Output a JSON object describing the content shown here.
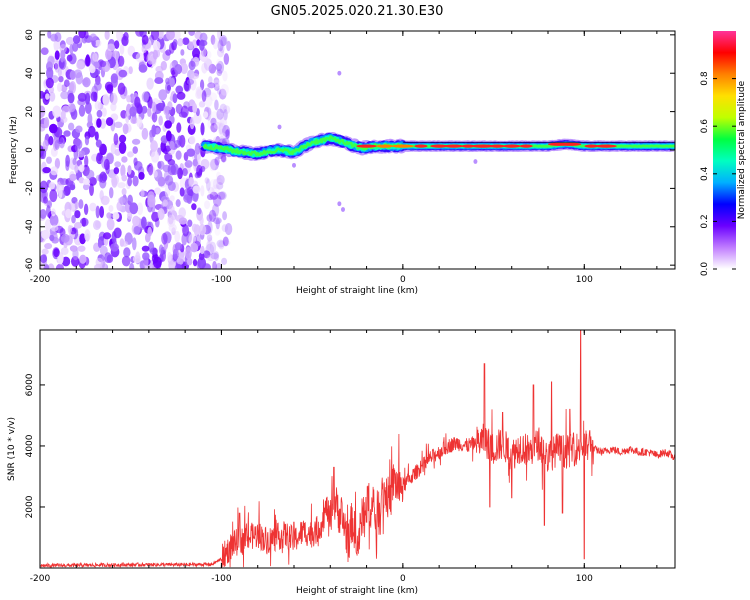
{
  "title": "GN05.2025.020.21.30.E30",
  "colors": {
    "signal_line": "#ee3333",
    "axis": "#000000",
    "background": "#ffffff"
  },
  "chart_data": [
    {
      "type": "heatmap",
      "name": "spectrogram",
      "xlabel": "Height of straight line (km)",
      "ylabel": "Frequency (Hz)",
      "xlim": [
        -200,
        150
      ],
      "ylim": [
        -62,
        62
      ],
      "xticks": [
        -200,
        -100,
        0,
        100
      ],
      "xtick_labels": [
        "-200",
        "-100",
        "0",
        "100"
      ],
      "yticks": [
        -60,
        -40,
        -20,
        0,
        20,
        40,
        60
      ],
      "ytick_labels": [
        "-60",
        "-40",
        "-20",
        "0",
        "20",
        "40",
        "60"
      ],
      "colorbar": {
        "label": "Normalized spectral amplitude",
        "range": [
          0,
          1
        ],
        "ticks": [
          0.0,
          0.2,
          0.4,
          0.6,
          0.8
        ],
        "tick_labels": [
          "0.0",
          "0.2",
          "0.4",
          "0.6",
          "0.8"
        ],
        "colors": [
          "#ffffff",
          "#c07cff",
          "#6a00ff",
          "#0000ff",
          "#00b0ff",
          "#00ffc0",
          "#00ff40",
          "#c0ff00",
          "#ffe000",
          "#ff8000",
          "#ff0000",
          "#ff3399"
        ]
      },
      "noise_region_km": [
        -200,
        -100
      ],
      "ridge_start_km": -110,
      "ridge_frequency_hz": [
        [
          -110,
          2
        ],
        [
          -100,
          1
        ],
        [
          -90,
          -1
        ],
        [
          -80,
          -2
        ],
        [
          -70,
          0
        ],
        [
          -60,
          -1
        ],
        [
          -50,
          4
        ],
        [
          -40,
          6
        ],
        [
          -35,
          5
        ],
        [
          -30,
          3
        ],
        [
          -22,
          1
        ],
        [
          -15,
          2
        ],
        [
          0,
          2
        ],
        [
          20,
          2
        ],
        [
          40,
          2
        ],
        [
          60,
          2
        ],
        [
          80,
          2
        ],
        [
          90,
          3
        ],
        [
          100,
          2
        ],
        [
          120,
          2
        ],
        [
          150,
          2
        ]
      ]
    },
    {
      "type": "line",
      "name": "snr",
      "xlabel": "Height of straight line (km)",
      "ylabel": "SNR (10 * v/v)",
      "xlim": [
        -200,
        150
      ],
      "ylim": [
        0,
        7800
      ],
      "xticks": [
        -200,
        -100,
        0,
        100
      ],
      "xtick_labels": [
        "-200",
        "-100",
        "0",
        "100"
      ],
      "yticks": [
        2000,
        4000,
        6000
      ],
      "ytick_labels": [
        "2000",
        "4000",
        "6000"
      ],
      "series": [
        {
          "name": "SNR",
          "x": [
            -200,
            -180,
            -160,
            -140,
            -120,
            -105,
            -100,
            -95,
            -90,
            -85,
            -80,
            -75,
            -70,
            -65,
            -60,
            -55,
            -50,
            -45,
            -42,
            -40,
            -38,
            -35,
            -32,
            -30,
            -28,
            -25,
            -22,
            -20,
            -17,
            -15,
            -12,
            -10,
            -7,
            -5,
            -2,
            0,
            5,
            10,
            15,
            20,
            25,
            30,
            35,
            40,
            45,
            50,
            55,
            60,
            65,
            70,
            75,
            80,
            85,
            90,
            95,
            100,
            105,
            110,
            115,
            120,
            125,
            130,
            135,
            140,
            145,
            150
          ],
          "y": [
            80,
            90,
            100,
            110,
            110,
            120,
            300,
            700,
            900,
            1000,
            1100,
            900,
            1000,
            1100,
            900,
            1200,
            1100,
            1400,
            2000,
            1500,
            2200,
            1800,
            1400,
            800,
            1600,
            700,
            1800,
            2300,
            1900,
            1600,
            2400,
            2500,
            2200,
            2900,
            2600,
            2700,
            3000,
            3300,
            3600,
            3800,
            4000,
            4100,
            4000,
            4100,
            4200,
            3900,
            4100,
            3700,
            4000,
            3800,
            4100,
            3600,
            3900,
            3800,
            3900,
            4000,
            3900,
            3800,
            3900,
            3800,
            3900,
            3800,
            3800,
            3700,
            3800,
            3600
          ],
          "spikes": [
            [
              -90,
              1800
            ],
            [
              -60,
              1500
            ],
            [
              -38,
              3300
            ],
            [
              -33,
              1300
            ],
            [
              -20,
              1500
            ],
            [
              45,
              6700
            ],
            [
              48,
              2000
            ],
            [
              55,
              5100
            ],
            [
              60,
              2300
            ],
            [
              72,
              6000
            ],
            [
              78,
              1400
            ],
            [
              82,
              6100
            ],
            [
              88,
              1800
            ],
            [
              92,
              5200
            ],
            [
              98,
              7800
            ],
            [
              100,
              300
            ],
            [
              103,
              4500
            ]
          ]
        }
      ]
    }
  ]
}
